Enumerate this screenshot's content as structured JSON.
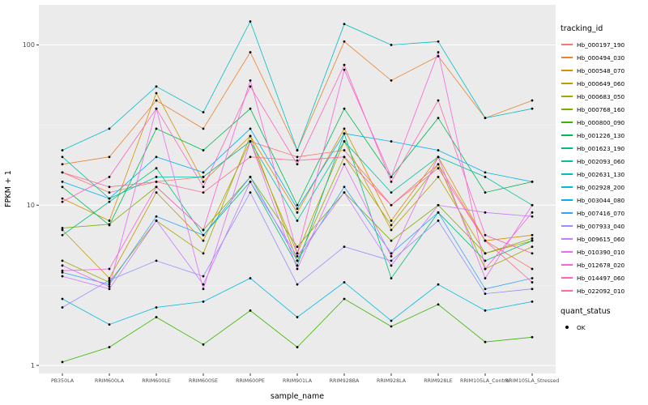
{
  "figure": {
    "background": "#FFFFFF",
    "panel_background": "#EBEBEB",
    "grid_major_color": "#FFFFFF",
    "grid_minor_color": "#F7F7F7",
    "tick_color": "#333333",
    "tick_label_color": "#4D4D4D",
    "point_color": "#000000"
  },
  "axes": {
    "x": {
      "title": "sample_name"
    },
    "y": {
      "title": "FPKM + 1",
      "scale": "log10",
      "tick_labels": [
        "1",
        "10",
        "100"
      ],
      "tick_values": [
        1,
        10,
        100
      ],
      "minor_tick_values": [
        3.1623,
        31.623
      ]
    }
  },
  "legend": {
    "tracking_id_title": "tracking_id",
    "quant_status_title": "quant_status",
    "quant_status_items": [
      {
        "label": "OK",
        "color": "#000000"
      }
    ]
  },
  "chart_data": {
    "type": "line",
    "title": "",
    "xlabel": "sample_name",
    "ylabel": "FPKM + 1",
    "yscale": "log10",
    "ylim": [
      0.9,
      160
    ],
    "grid": true,
    "legend_position": "right",
    "categories": [
      "PB350LA",
      "RRIM600LA",
      "RRIM600LE",
      "RRIM600SE",
      "RRIM600PE",
      "RRIM901LA",
      "RRIM928BA",
      "RRIM928LA",
      "RRIM928LE",
      "RRIM105LA_Control",
      "RRIM105LA_Stressed"
    ],
    "series": [
      {
        "name": "Hb_000197_190",
        "color": "#F8766D",
        "values": [
          16,
          12,
          14,
          15,
          25,
          20,
          22,
          10,
          18,
          6,
          4
        ]
      },
      {
        "name": "Hb_000494_030",
        "color": "#EA8331",
        "values": [
          18,
          20,
          45,
          30,
          90,
          22,
          105,
          60,
          85,
          35,
          45
        ]
      },
      {
        "name": "Hb_000548_070",
        "color": "#D89000",
        "values": [
          11,
          8,
          50,
          14,
          27,
          9,
          30,
          8,
          20,
          6,
          6.5
        ]
      },
      {
        "name": "Hb_000649_060",
        "color": "#C09B00",
        "values": [
          7,
          3.5,
          12,
          6,
          25,
          5,
          25,
          7,
          15,
          5,
          6
        ]
      },
      {
        "name": "Hb_000683_050",
        "color": "#A3A500",
        "values": [
          4.5,
          3.3,
          8,
          5,
          27,
          4.5,
          20,
          7.5,
          18,
          4,
          5.5
        ]
      },
      {
        "name": "Hb_000768_160",
        "color": "#7CAE00",
        "values": [
          7.2,
          7.6,
          13,
          7,
          15,
          5.5,
          12,
          6,
          10,
          5,
          6.2
        ]
      },
      {
        "name": "Hb_000800_090",
        "color": "#39B600",
        "values": [
          1.05,
          1.3,
          2,
          1.35,
          2.2,
          1.3,
          2.6,
          1.75,
          2.4,
          1.4,
          1.5
        ]
      },
      {
        "name": "Hb_001226_130",
        "color": "#00BB4E",
        "values": [
          13,
          7.5,
          30,
          22,
          40,
          10,
          40,
          15,
          35,
          12,
          14
        ]
      },
      {
        "name": "Hb_001623_190",
        "color": "#00BF7D",
        "values": [
          6.5,
          10.5,
          17,
          6.5,
          14,
          4.2,
          28,
          3.5,
          9,
          4.5,
          6
        ]
      },
      {
        "name": "Hb_002093_060",
        "color": "#00C1A3",
        "values": [
          20,
          11,
          15,
          15,
          25,
          8,
          25,
          12,
          20,
          15,
          10
        ]
      },
      {
        "name": "Hb_002631_130",
        "color": "#00BFC4",
        "values": [
          22,
          30,
          55,
          38,
          140,
          22,
          135,
          100,
          105,
          35,
          40
        ]
      },
      {
        "name": "Hb_002928_200",
        "color": "#00BAE0",
        "values": [
          2.6,
          1.8,
          2.3,
          2.5,
          3.5,
          2,
          3.3,
          1.9,
          3.2,
          2.2,
          2.5
        ]
      },
      {
        "name": "Hb_003044_080",
        "color": "#00B0F6",
        "values": [
          14,
          11,
          20,
          16,
          30,
          9.5,
          28,
          25,
          22,
          16,
          14
        ]
      },
      {
        "name": "Hb_007416_070",
        "color": "#35A2FF",
        "values": [
          3.8,
          3.2,
          8.5,
          6.5,
          15,
          4.5,
          13,
          5,
          9,
          3,
          3.5
        ]
      },
      {
        "name": "Hb_007933_040",
        "color": "#9590FF",
        "values": [
          2.3,
          3.4,
          4.5,
          3.6,
          12,
          3.2,
          5.5,
          4.5,
          8,
          2.8,
          3
        ]
      },
      {
        "name": "Hb_009615_060",
        "color": "#C77CFF",
        "values": [
          3.6,
          3,
          8,
          3.2,
          14,
          4.8,
          12,
          4.2,
          10,
          9,
          8.5
        ]
      },
      {
        "name": "Hb_010390_010",
        "color": "#E76BF3",
        "values": [
          4.2,
          3.1,
          40,
          3,
          25,
          4,
          18,
          4.8,
          20,
          3.5,
          10
        ]
      },
      {
        "name": "Hb_012678_020",
        "color": "#FA62DB",
        "values": [
          3.9,
          4,
          13,
          7,
          60,
          5,
          70,
          15,
          90,
          4,
          9
        ]
      },
      {
        "name": "Hb_014497_060",
        "color": "#FF62BC",
        "values": [
          10.5,
          15,
          40,
          13,
          55,
          18,
          75,
          14,
          45,
          6.5,
          5
        ]
      },
      {
        "name": "Hb_022092_010",
        "color": "#FF6A98",
        "values": [
          16,
          13,
          14,
          12,
          20,
          19,
          20,
          10,
          17,
          6,
          3.3
        ]
      }
    ]
  }
}
